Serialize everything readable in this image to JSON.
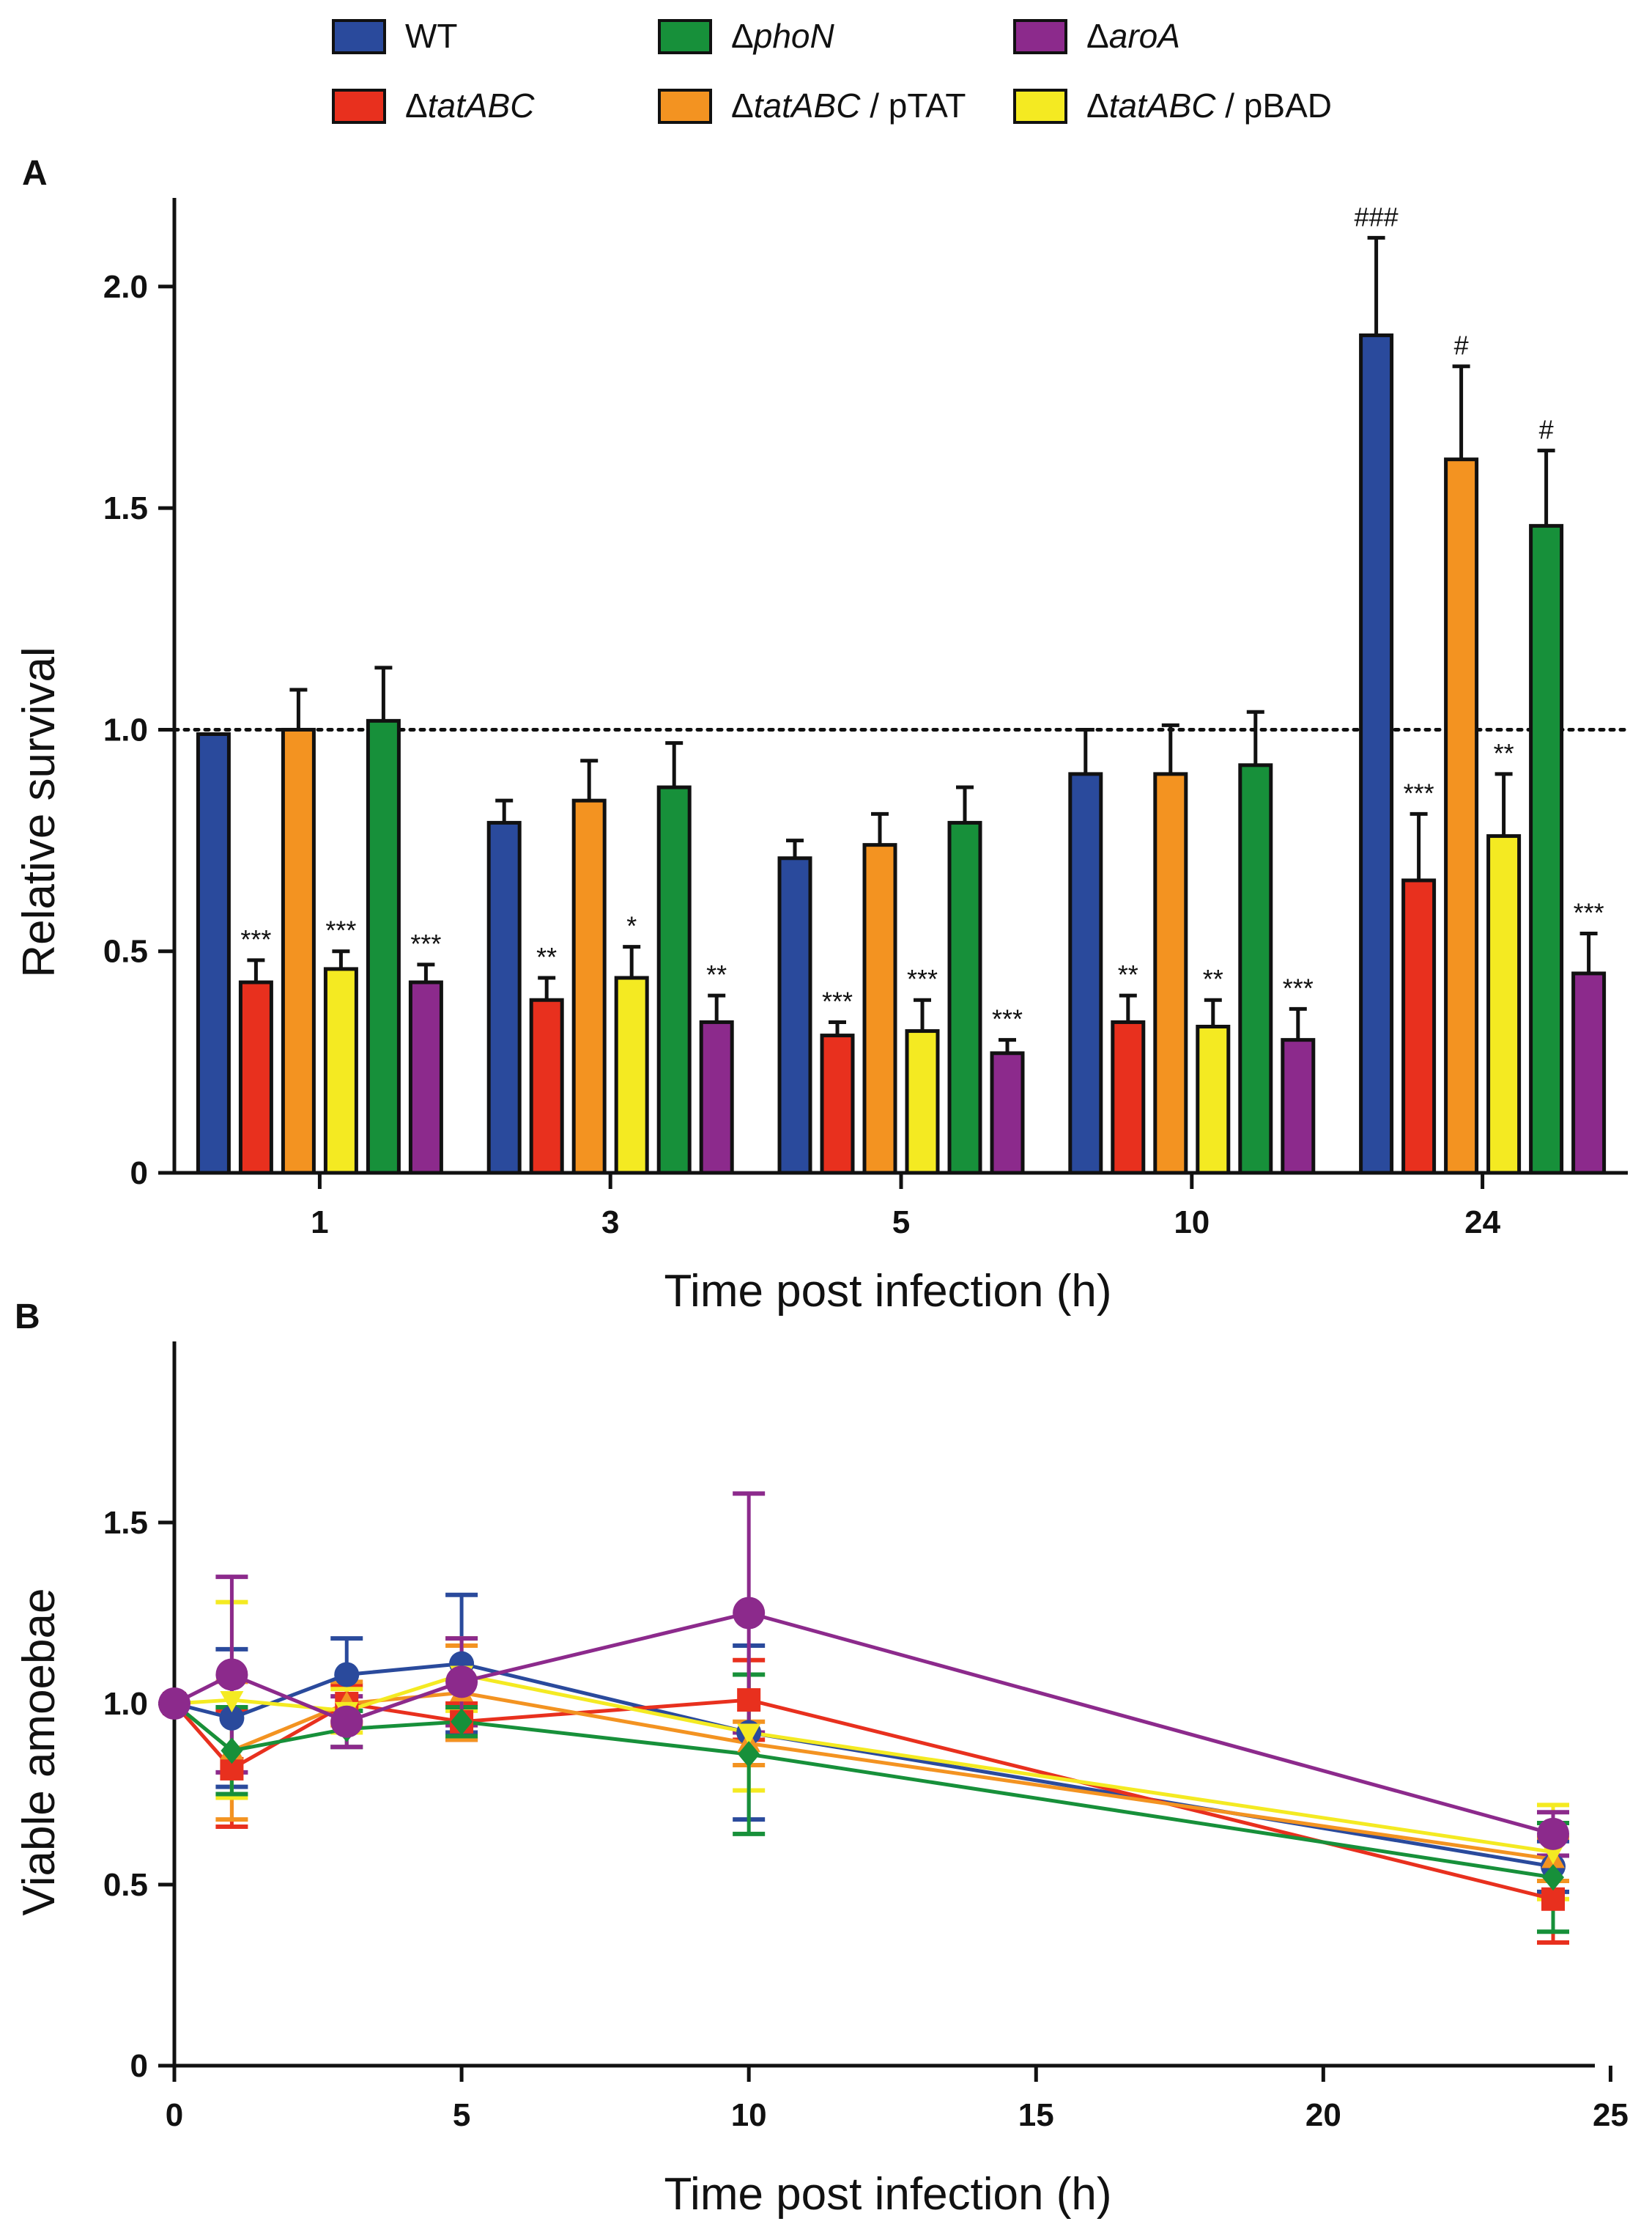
{
  "legend": [
    {
      "key": "WT",
      "prefix": "",
      "gene": "",
      "suffix": "WT",
      "color": "#2a4a9c"
    },
    {
      "key": "phoN",
      "prefix": "Δ",
      "gene": "phoN",
      "suffix": "",
      "color": "#17903a"
    },
    {
      "key": "aroA",
      "prefix": "Δ",
      "gene": "aroA",
      "suffix": "",
      "color": "#8c2a8c"
    },
    {
      "key": "tatABC",
      "prefix": "Δ",
      "gene": "tatABC",
      "suffix": "",
      "color": "#e8301e"
    },
    {
      "key": "pTAT",
      "prefix": "Δ",
      "gene": "tatABC",
      "suffix": " / pTAT",
      "color": "#f39321"
    },
    {
      "key": "pBAD",
      "prefix": "Δ",
      "gene": "tatABC",
      "suffix": " / pBAD",
      "color": "#f4ea22"
    }
  ],
  "chart_data": [
    {
      "panel": "A",
      "type": "bar",
      "xlabel": "Time post infection (h)",
      "ylabel": "Relative survival",
      "ylim": [
        0,
        2.2
      ],
      "yticks": [
        0,
        0.5,
        1.0,
        1.5,
        2.0
      ],
      "ytick_labels": [
        "0",
        "0.5",
        "1.0",
        "1.5",
        "2.0"
      ],
      "reference_line": 1.0,
      "categories": [
        "1",
        "3",
        "5",
        "10",
        "24"
      ],
      "bar_order": [
        "WT",
        "tatABC",
        "pTAT",
        "pBAD",
        "phoN",
        "aroA"
      ],
      "series": [
        {
          "key": "WT",
          "name": "WT",
          "color": "#2a4a9c",
          "values": [
            0.99,
            0.79,
            0.71,
            0.9,
            1.89
          ],
          "errors": [
            0.0,
            0.05,
            0.04,
            0.1,
            0.22
          ],
          "annotations": [
            "",
            "",
            "",
            "",
            "###"
          ]
        },
        {
          "key": "tatABC",
          "name": "ΔtatABC",
          "color": "#e8301e",
          "values": [
            0.43,
            0.39,
            0.31,
            0.34,
            0.66
          ],
          "errors": [
            0.05,
            0.05,
            0.03,
            0.06,
            0.15
          ],
          "annotations": [
            "***",
            "**",
            "***",
            "**",
            "***"
          ]
        },
        {
          "key": "pTAT",
          "name": "ΔtatABC / pTAT",
          "color": "#f39321",
          "values": [
            1.0,
            0.84,
            0.74,
            0.9,
            1.61
          ],
          "errors": [
            0.09,
            0.09,
            0.07,
            0.11,
            0.21
          ],
          "annotations": [
            "",
            "",
            "",
            "",
            "#"
          ]
        },
        {
          "key": "pBAD",
          "name": "ΔtatABC / pBAD",
          "color": "#f4ea22",
          "values": [
            0.46,
            0.44,
            0.32,
            0.33,
            0.76
          ],
          "errors": [
            0.04,
            0.07,
            0.07,
            0.06,
            0.14
          ],
          "annotations": [
            "***",
            "*",
            "***",
            "**",
            "**"
          ]
        },
        {
          "key": "phoN",
          "name": "ΔphoN",
          "color": "#17903a",
          "values": [
            1.02,
            0.87,
            0.79,
            0.92,
            1.46
          ],
          "errors": [
            0.12,
            0.1,
            0.08,
            0.12,
            0.17
          ],
          "annotations": [
            "",
            "",
            "",
            "",
            "#"
          ]
        },
        {
          "key": "aroA",
          "name": "ΔaroA",
          "color": "#8c2a8c",
          "values": [
            0.43,
            0.34,
            0.27,
            0.3,
            0.45
          ],
          "errors": [
            0.04,
            0.06,
            0.03,
            0.07,
            0.09
          ],
          "annotations": [
            "***",
            "**",
            "***",
            "***",
            "***"
          ]
        }
      ]
    },
    {
      "panel": "B",
      "type": "line",
      "xlabel": "Time post infection (h)",
      "ylabel": "Viable amoebae",
      "xlim": [
        0,
        26
      ],
      "ylim": [
        0,
        2.0
      ],
      "xticks": [
        0,
        5,
        10,
        15,
        20,
        25
      ],
      "xtick_labels": [
        "0",
        "5",
        "10",
        "15",
        "20",
        "25"
      ],
      "yticks": [
        0,
        0.5,
        1.0,
        1.5
      ],
      "ytick_labels": [
        "0",
        "0.5",
        "1.0",
        "1.5"
      ],
      "x": [
        0,
        1,
        3,
        5,
        10,
        24
      ],
      "series": [
        {
          "key": "WT",
          "name": "WT",
          "color": "#2a4a9c",
          "marker": "circle",
          "values": [
            1.0,
            0.96,
            1.08,
            1.11,
            0.92,
            0.55
          ],
          "errors": [
            0,
            0.19,
            0.1,
            0.19,
            0.24,
            0.07
          ]
        },
        {
          "key": "tatABC",
          "name": "ΔtatABC",
          "color": "#e8301e",
          "marker": "square",
          "values": [
            1.0,
            0.82,
            1.0,
            0.95,
            1.01,
            0.46
          ],
          "errors": [
            0,
            0.16,
            0.05,
            0.05,
            0.11,
            0.12
          ]
        },
        {
          "key": "pTAT",
          "name": "ΔtatABC / pTAT",
          "color": "#f39321",
          "marker": "triangle",
          "values": [
            1.0,
            0.87,
            1.0,
            1.03,
            0.89,
            0.57
          ],
          "errors": [
            0,
            0.19,
            0.06,
            0.13,
            0.06,
            0.06
          ]
        },
        {
          "key": "pBAD",
          "name": "ΔtatABC / pBAD",
          "color": "#f4ea22",
          "marker": "triangle-down",
          "values": [
            1.0,
            1.01,
            0.98,
            1.08,
            0.92,
            0.59
          ],
          "errors": [
            0,
            0.27,
            0.06,
            0.1,
            0.16,
            0.13
          ]
        },
        {
          "key": "phoN",
          "name": "ΔphoN",
          "color": "#17903a",
          "marker": "diamond",
          "values": [
            1.0,
            0.87,
            0.93,
            0.95,
            0.86,
            0.52
          ],
          "errors": [
            0,
            0.12,
            0.05,
            0.04,
            0.22,
            0.15
          ]
        },
        {
          "key": "aroA",
          "name": "ΔaroA",
          "color": "#8c2a8c",
          "marker": "circle-large",
          "values": [
            1.0,
            1.08,
            0.95,
            1.06,
            1.25,
            0.64
          ],
          "errors": [
            0,
            0.27,
            0.07,
            0.12,
            0.33,
            0.06
          ]
        }
      ]
    }
  ]
}
